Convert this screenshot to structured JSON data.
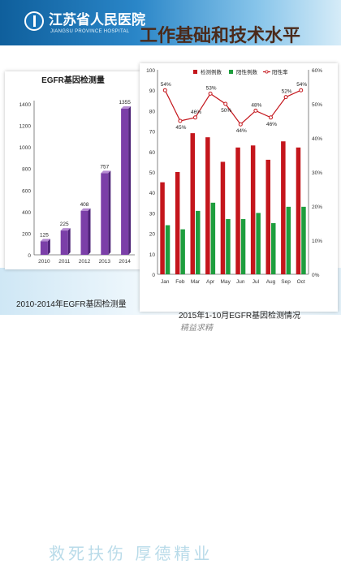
{
  "header": {
    "hospital_name": "江苏省人民医院",
    "hospital_name_en": "JIANGSU PROVINCE HOSPITAL",
    "page_title": "工作基础和技术水平"
  },
  "captions": {
    "left": "2010-2014年EGFR基因检测量",
    "right": "2015年1-10月EGFR基因检测情况"
  },
  "watermark": "精益求精",
  "calligraphy": "救死扶伤 厚德精业",
  "colors": {
    "purple": "#7b3fa8",
    "red": "#c4161c",
    "green": "#1e9e3e"
  },
  "chart_data": [
    {
      "type": "bar",
      "title": "EGFR基因检测量",
      "categories": [
        "2010",
        "2011",
        "2012",
        "2013",
        "2014"
      ],
      "values": [
        125,
        225,
        408,
        757,
        1355
      ],
      "ylim": [
        0,
        1400
      ],
      "yticks": [
        0,
        200,
        400,
        600,
        800,
        1000,
        1200,
        1400
      ],
      "grid": false
    },
    {
      "type": "bar",
      "categories": [
        "Jan",
        "Feb",
        "Mar",
        "Apr",
        "May",
        "Jun",
        "Jul",
        "Aug",
        "Sep",
        "Oct"
      ],
      "series": [
        {
          "name": "检测例数",
          "type": "bar",
          "values": [
            45,
            50,
            69,
            67,
            55,
            62,
            63,
            56,
            65,
            62
          ]
        },
        {
          "name": "阳性例数",
          "type": "bar",
          "values": [
            24,
            22,
            31,
            35,
            27,
            27,
            30,
            25,
            33,
            33
          ]
        },
        {
          "name": "阳性率",
          "type": "line",
          "axis": "right",
          "values": [
            54,
            45,
            46,
            53,
            50,
            44,
            48,
            46,
            52,
            54
          ],
          "labels": [
            "54%",
            "45%",
            "46%",
            "53%",
            "50%",
            "44%",
            "48%",
            "46%",
            "52%",
            "54%"
          ]
        }
      ],
      "ylim": [
        0,
        100
      ],
      "yticks": [
        0,
        10,
        20,
        30,
        40,
        50,
        60,
        70,
        80,
        90,
        100
      ],
      "y2lim": [
        0,
        60
      ],
      "y2ticks": [
        "0%",
        "10%",
        "20%",
        "30%",
        "40%",
        "50%",
        "60%"
      ],
      "legend": "top",
      "grid": false
    }
  ]
}
